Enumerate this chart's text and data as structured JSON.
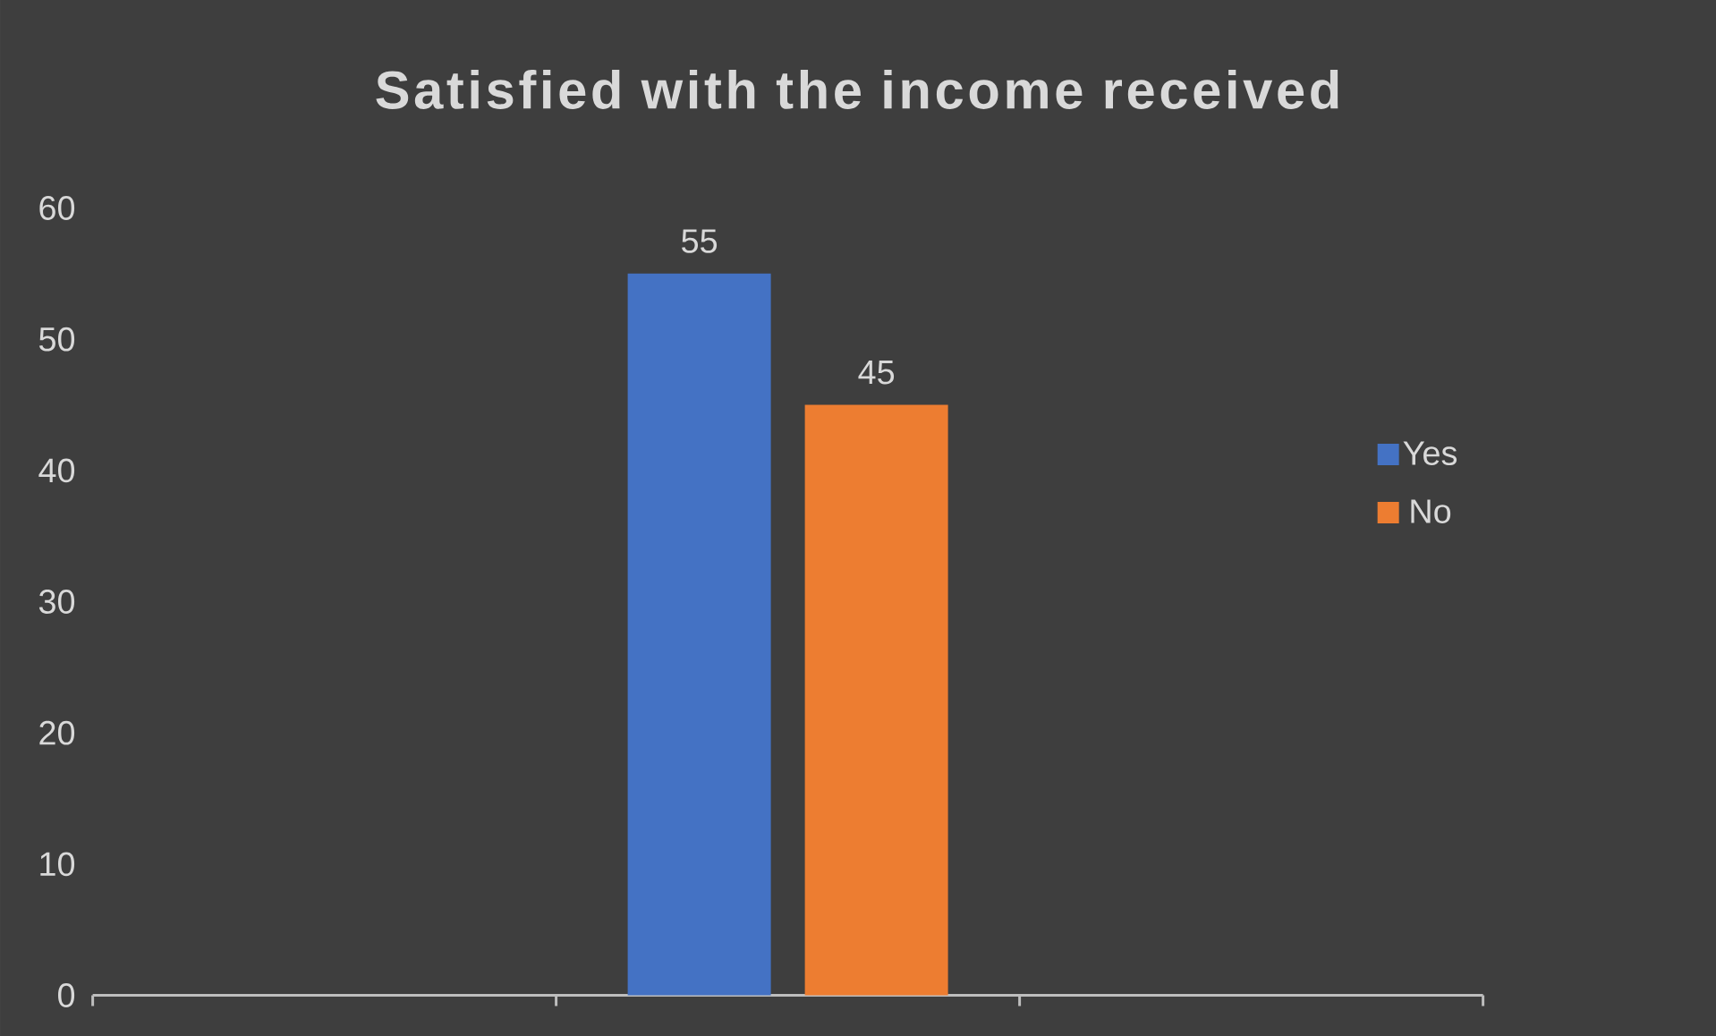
{
  "chart_data": {
    "type": "bar",
    "title": "Satisfied with the income received",
    "categories": [
      null,
      null,
      null
    ],
    "series": [
      {
        "name": "Yes",
        "color": "#4472c4",
        "values": [
          null,
          55,
          null
        ]
      },
      {
        "name": "No",
        "color": "#ed7d31",
        "values": [
          null,
          45,
          null
        ]
      }
    ],
    "ylim": [
      0,
      60
    ],
    "yticks": [
      0,
      10,
      20,
      30,
      40,
      50,
      60
    ],
    "grid": false,
    "legend": "right",
    "data_labels": true
  }
}
